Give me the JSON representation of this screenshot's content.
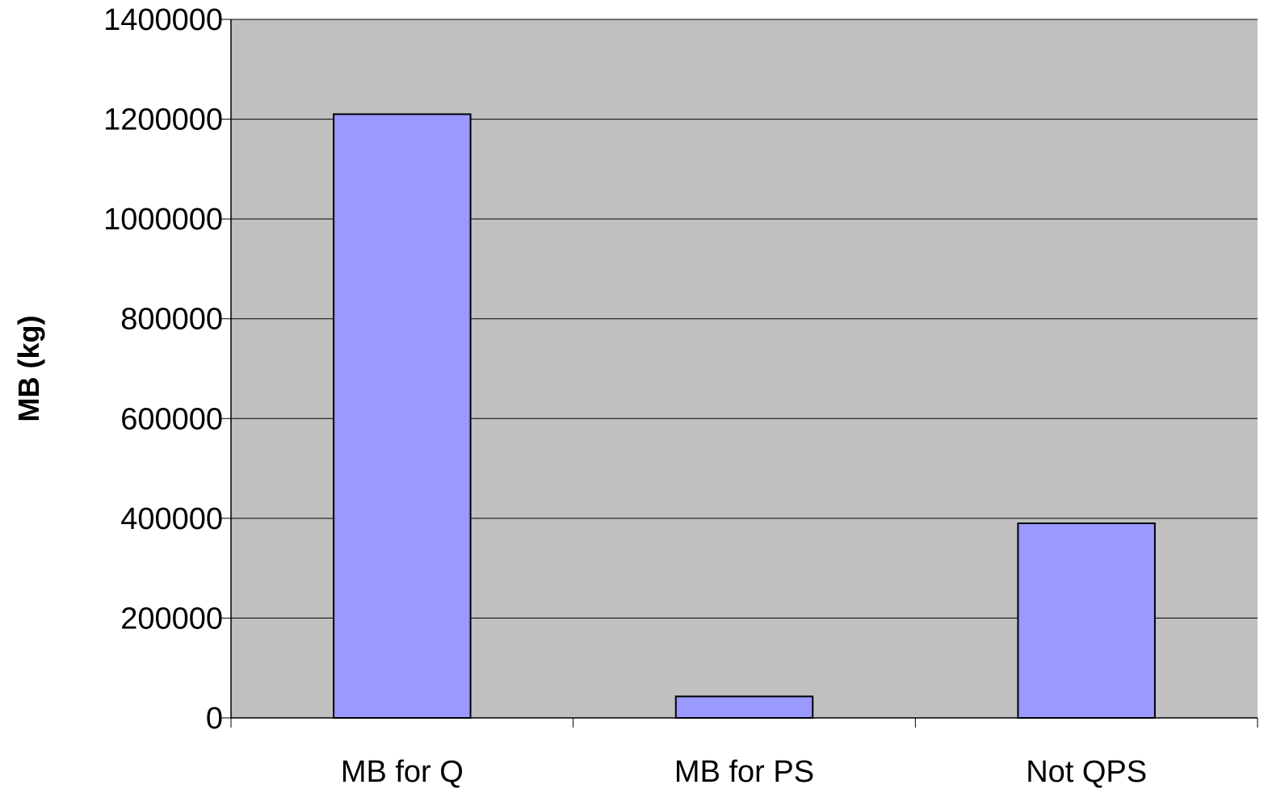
{
  "chart_data": {
    "type": "bar",
    "title": "",
    "xlabel": "",
    "ylabel": "MB (kg)",
    "categories": [
      "MB for Q",
      "MB for PS",
      "Not QPS"
    ],
    "values": [
      1210000,
      43000,
      390000
    ],
    "ylim": [
      0,
      1400000
    ],
    "yticks": [
      0,
      200000,
      400000,
      600000,
      800000,
      1000000,
      1200000,
      1400000
    ],
    "grid": true,
    "legend": "none",
    "colors": {
      "plot_background": "#c0c0c0",
      "bar_fill": "#9999ff",
      "bar_stroke": "#000000",
      "gridline": "#000000"
    }
  }
}
